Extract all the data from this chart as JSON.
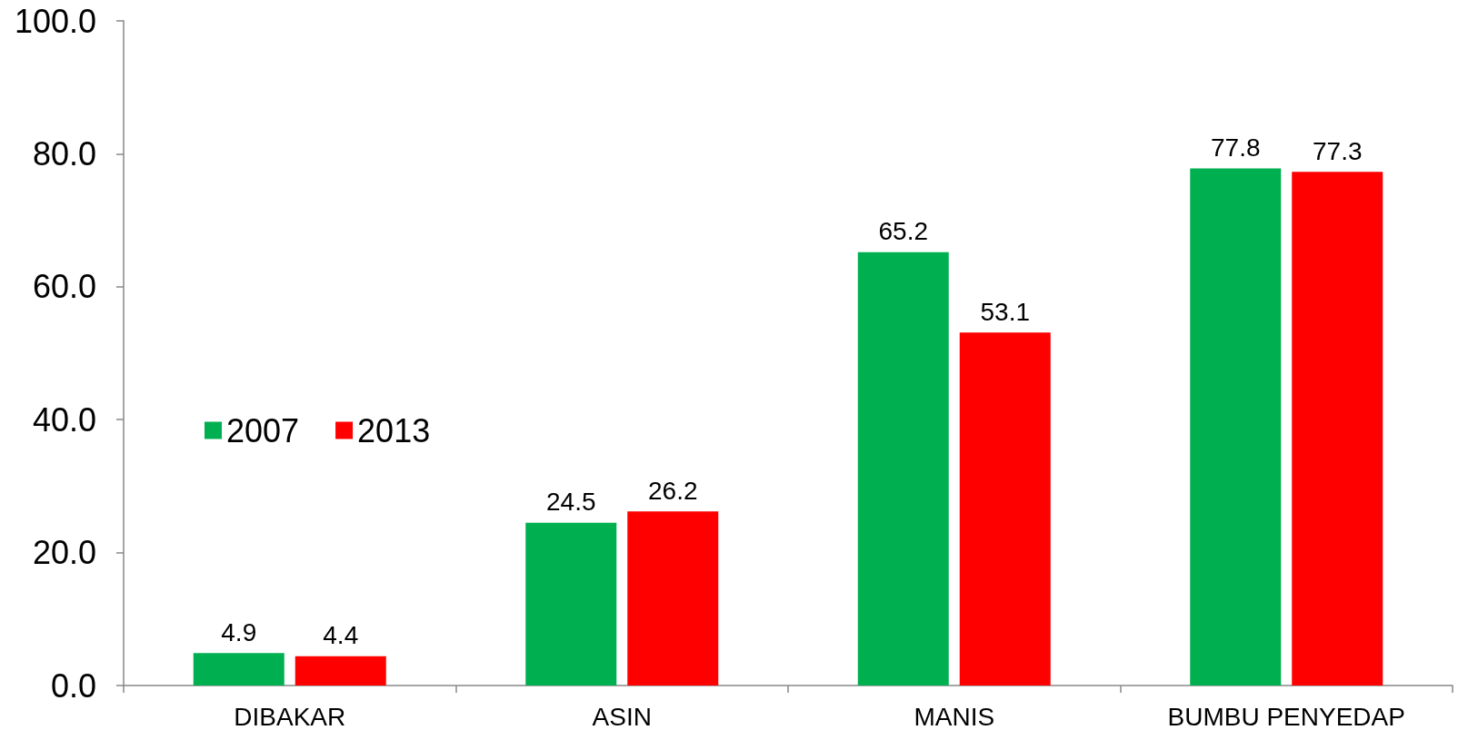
{
  "chart_data": {
    "type": "bar",
    "categories": [
      "DIBAKAR",
      "ASIN",
      "MANIS",
      "BUMBU PENYEDAP"
    ],
    "series": [
      {
        "name": "2007",
        "color": "#00b050",
        "values": [
          4.9,
          24.5,
          65.2,
          77.8
        ]
      },
      {
        "name": "2013",
        "color": "#ff0000",
        "values": [
          4.4,
          26.2,
          53.1,
          77.3
        ]
      }
    ],
    "ylim": [
      0,
      100
    ],
    "yticks": [
      {
        "value": 0,
        "label": "0.0"
      },
      {
        "value": 20,
        "label": "20.0"
      },
      {
        "value": 40,
        "label": "40.0"
      },
      {
        "value": 60,
        "label": "60.0"
      },
      {
        "value": 80,
        "label": "80.0"
      },
      {
        "value": 100,
        "label": "100.0"
      }
    ],
    "data_labels": true,
    "grid": false,
    "legend": "left"
  }
}
